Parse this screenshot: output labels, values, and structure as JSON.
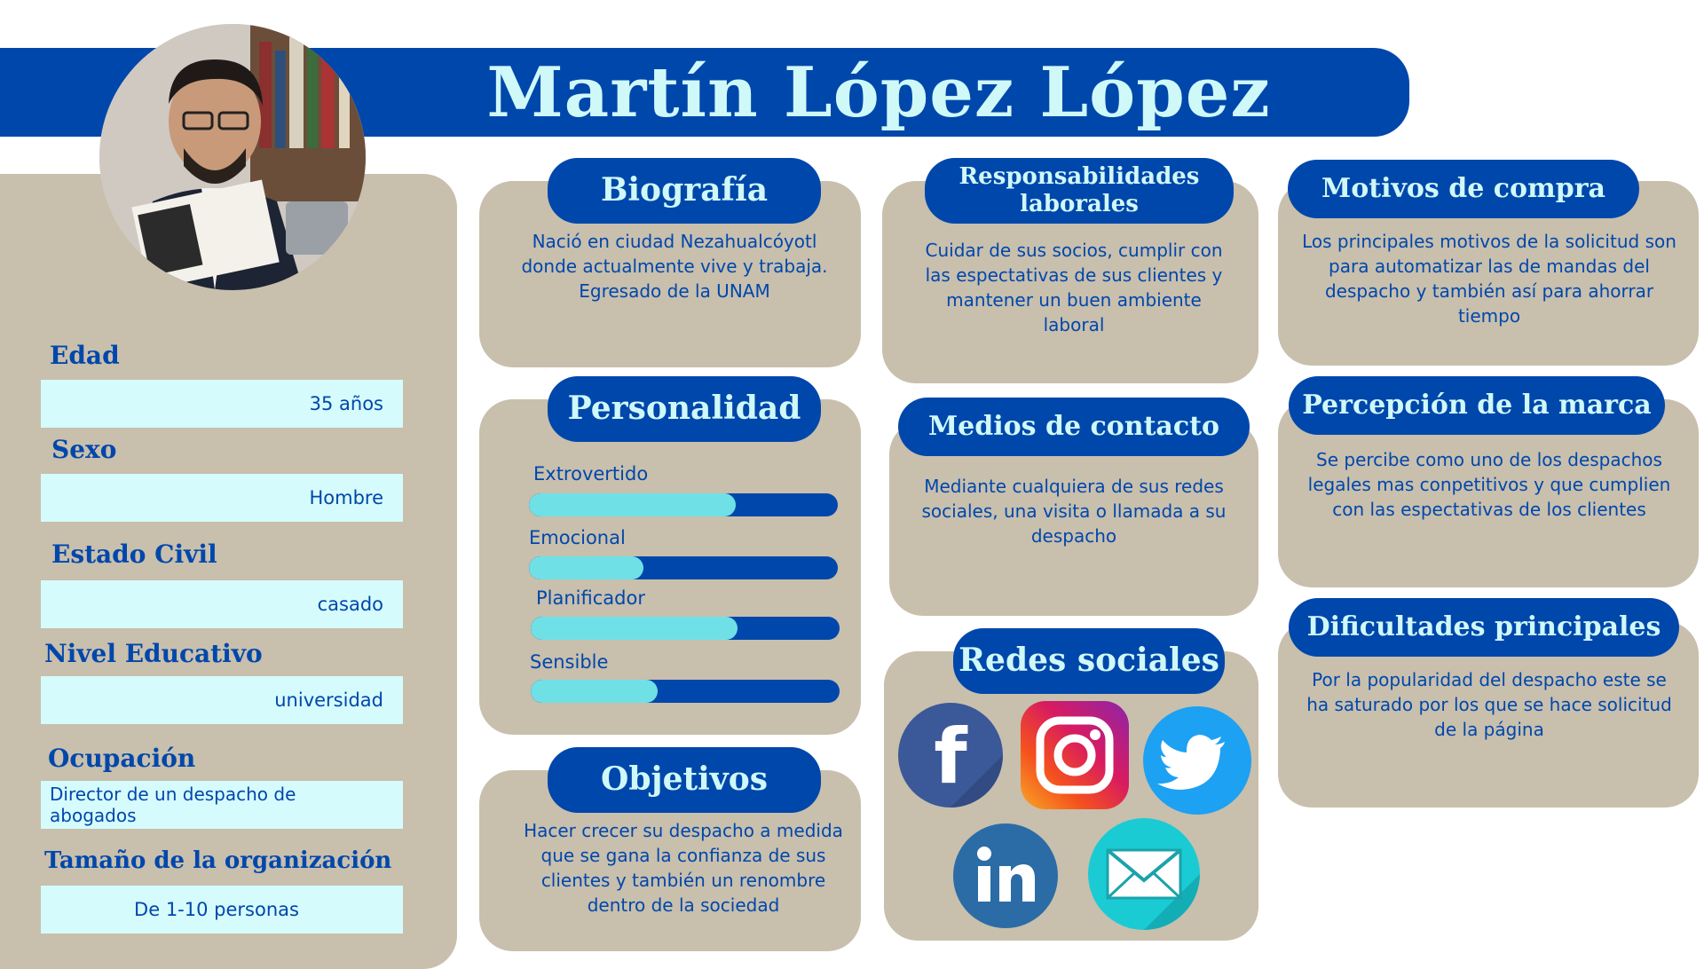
{
  "title": "Martín López López",
  "profile_fields": [
    {
      "label": "Edad",
      "value": "35 años"
    },
    {
      "label": "Sexo",
      "value": "Hombre"
    },
    {
      "label": "Estado Civil",
      "value": "casado"
    },
    {
      "label": "Nivel Educativo",
      "value": "universidad"
    },
    {
      "label": "Ocupación",
      "value": "Director de un despacho de abogados"
    },
    {
      "label": "Tamaño de la organización",
      "value": "De 1-10 personas"
    }
  ],
  "biografia": {
    "heading": "Biografía",
    "text": "Nació en ciudad Nezahualcóyotl donde actualmente vive y trabaja. Egresado de la UNAM"
  },
  "personalidad": {
    "heading": "Personalidad",
    "traits": [
      {
        "label": "Extrovertido",
        "level": 0.67
      },
      {
        "label": "Emocional",
        "level": 0.37
      },
      {
        "label": "Planificador",
        "level": 0.67
      },
      {
        "label": "Sensible",
        "level": 0.41
      }
    ]
  },
  "objetivos": {
    "heading": "Objetivos",
    "text": "Hacer crecer su despacho a medida que se gana la confianza de sus clientes y también un renombre dentro de la sociedad"
  },
  "responsabilidades": {
    "heading": "Responsabilidades laborales",
    "text": "Cuidar de sus socios, cumplir con las espectativas de sus clientes y mantener un buen ambiente laboral"
  },
  "medios": {
    "heading": "Medios de contacto",
    "text": "Mediante cualquiera de sus redes sociales, una visita o llamada a su despacho"
  },
  "redes": {
    "heading": "Redes sociales",
    "icons": [
      "facebook-icon",
      "instagram-icon",
      "twitter-icon",
      "linkedin-icon",
      "email-icon"
    ]
  },
  "motivos": {
    "heading": "Motivos de compra",
    "text": "Los principales motivos de la solicitud son para automatizar las de mandas del despacho y también así para ahorrar tiempo"
  },
  "percepcion": {
    "heading": "Percepción de la marca",
    "text": "Se percibe como uno de los despachos legales mas conpetitivos y que cumplien con las espectativas de los clientes"
  },
  "dificultades": {
    "heading": "Dificultades principales",
    "text": "Por la popularidad del despacho este se ha saturado por los que se hace solicitud de la página"
  },
  "colors": {
    "primary_blue": "#0047ab",
    "light_cyan": "#cff8f8",
    "card_beige": "#c8bfad",
    "bar_fill": "#6fe1e6"
  }
}
